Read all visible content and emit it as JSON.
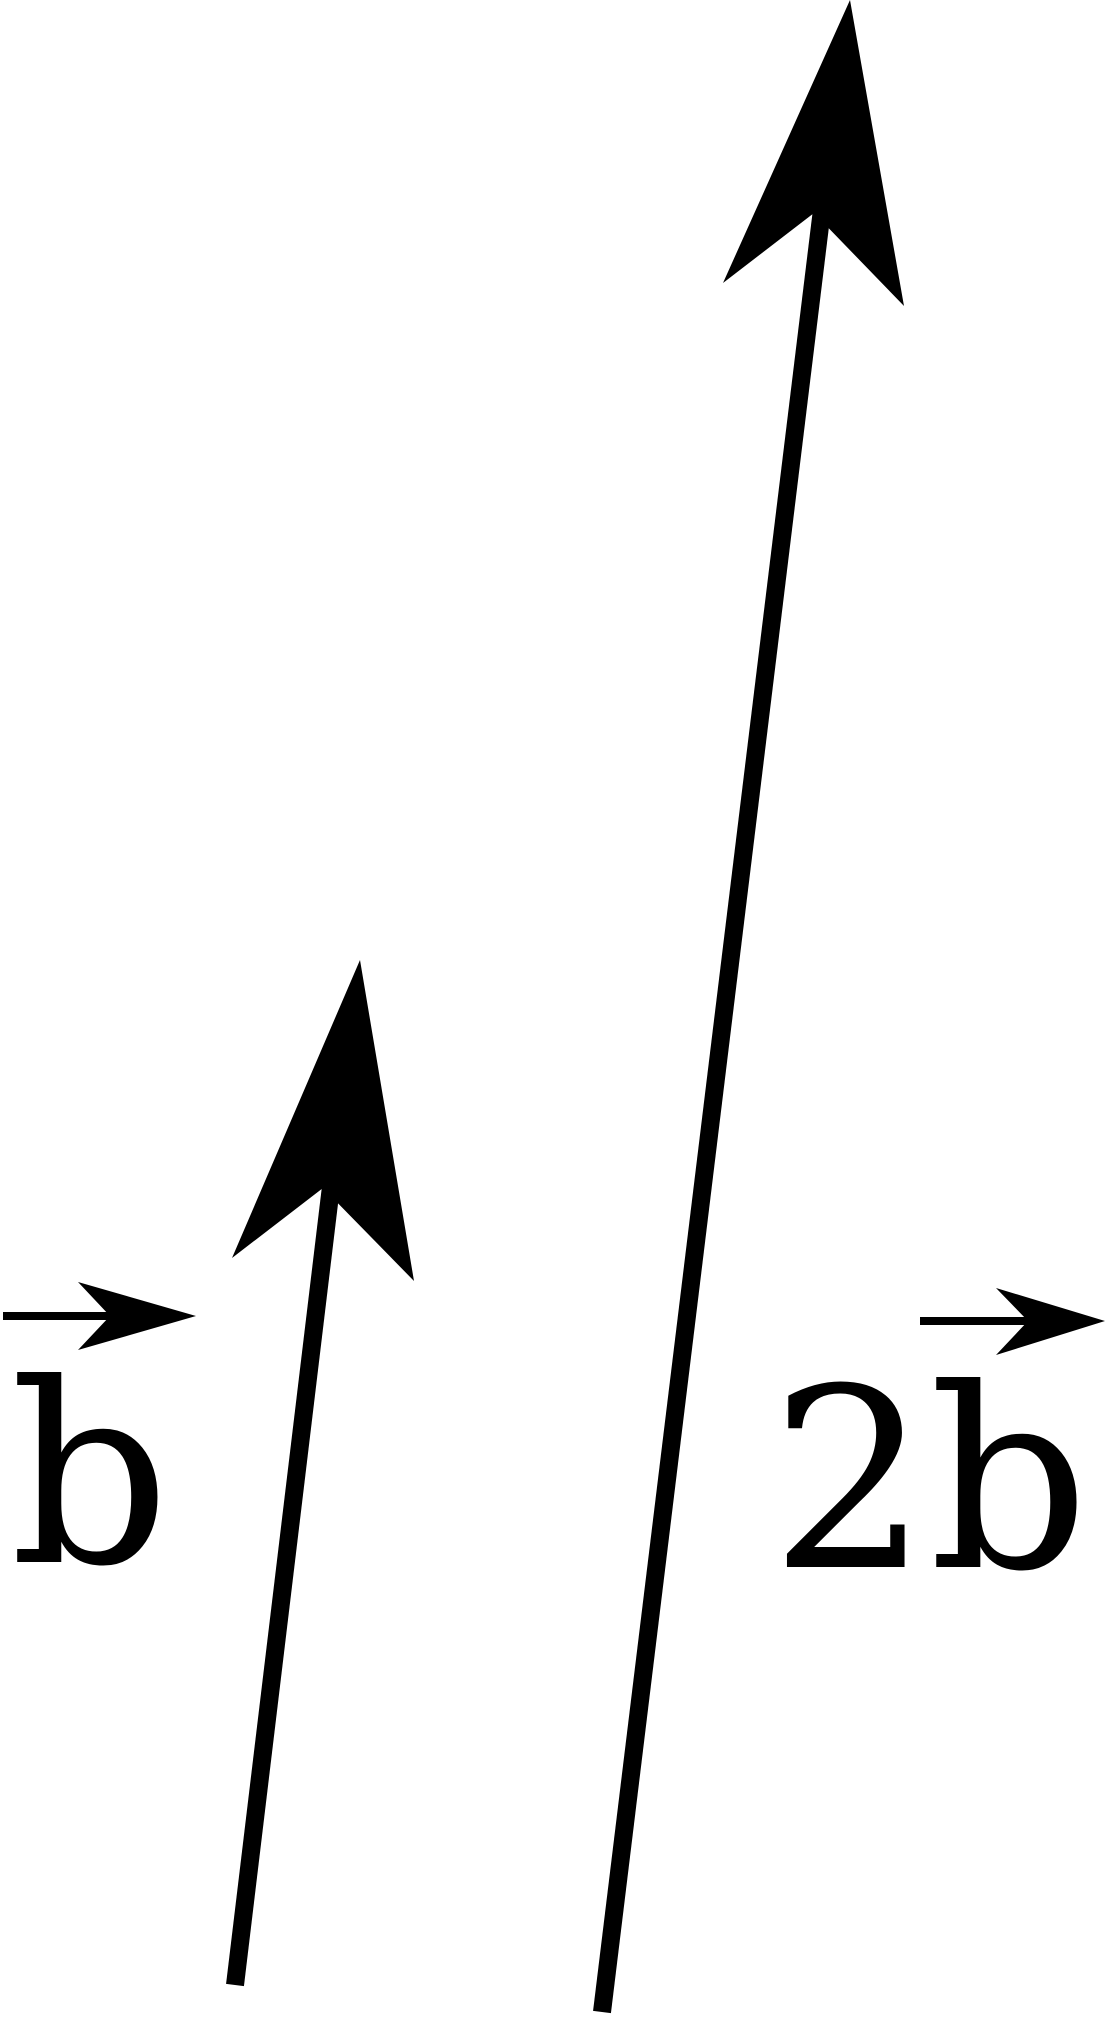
{
  "vectors": [
    {
      "label": "b"
    },
    {
      "label": "2b"
    }
  ],
  "colors": {
    "ink": "#000000",
    "background": "#ffffff"
  }
}
